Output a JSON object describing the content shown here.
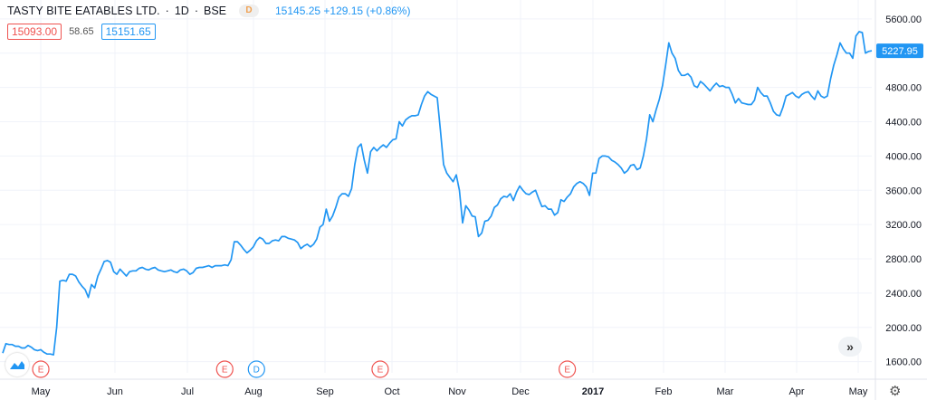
{
  "header": {
    "title": "TASTY BITE EATABLES LTD.",
    "interval": "1D",
    "exchange": "BSE",
    "badge": "D",
    "quote": "15145.25 +129.15 (+0.86%)"
  },
  "row2": {
    "red_value": "15093.00",
    "mid_value": "58.65",
    "blue_value": "15151.65"
  },
  "colors": {
    "line": "#2196f3",
    "accent": "#2196f3",
    "event": "#ef5350",
    "grid": "#f0f3fa"
  },
  "icons": {
    "logo": "tradingview-logo-icon",
    "scroll": "chevron-double-right-icon",
    "settings": "gear-icon"
  },
  "scroll_label": "»",
  "chart_data": {
    "type": "line",
    "xlabels": [
      "May",
      "Jun",
      "Jul",
      "Aug",
      "Sep",
      "Oct",
      "Nov",
      "Dec",
      "2017",
      "Feb",
      "Mar",
      "Apr",
      "May"
    ],
    "yticks": [
      1600,
      2000,
      2400,
      2800,
      3200,
      3600,
      4000,
      4400,
      4800,
      5200,
      5600
    ],
    "ytick_labels": [
      "1600.00",
      "2000.00",
      "2400.00",
      "2800.00",
      "3200.00",
      "3600.00",
      "4000.00",
      "4400.00",
      "4800.00",
      "5200.00",
      "5600.00"
    ],
    "ylim": [
      1470,
      5820
    ],
    "last_value_label": "5227.95",
    "last_value": 5228,
    "grid": true,
    "events": [
      {
        "label": "E",
        "type": "earnings",
        "date_index": 12
      },
      {
        "label": "E",
        "type": "earnings",
        "date_index": 70
      },
      {
        "label": "D",
        "type": "dividend",
        "date_index": 80
      },
      {
        "label": "E",
        "type": "earnings",
        "date_index": 119
      },
      {
        "label": "E",
        "type": "earnings",
        "date_index": 178
      }
    ],
    "series": [
      {
        "values": [
          1700,
          1810,
          1800,
          1800,
          1780,
          1780,
          1760,
          1760,
          1790,
          1770,
          1740,
          1730,
          1740,
          1710,
          1690,
          1690,
          1680,
          2000,
          2540,
          2550,
          2540,
          2620,
          2620,
          2600,
          2530,
          2480,
          2440,
          2350,
          2500,
          2460,
          2600,
          2680,
          2770,
          2780,
          2760,
          2650,
          2620,
          2680,
          2640,
          2600,
          2650,
          2660,
          2660,
          2690,
          2700,
          2680,
          2670,
          2690,
          2700,
          2670,
          2660,
          2650,
          2660,
          2670,
          2650,
          2640,
          2670,
          2680,
          2660,
          2620,
          2640,
          2690,
          2700,
          2700,
          2710,
          2720,
          2700,
          2720,
          2720,
          2720,
          2730,
          2720,
          2790,
          3000,
          3000,
          2960,
          2910,
          2870,
          2900,
          2940,
          3010,
          3050,
          3030,
          2980,
          2980,
          3010,
          3020,
          3010,
          3060,
          3060,
          3040,
          3030,
          3020,
          2990,
          2920,
          2950,
          2970,
          2940,
          2970,
          3030,
          3170,
          3200,
          3380,
          3240,
          3300,
          3400,
          3520,
          3560,
          3560,
          3530,
          3620,
          3900,
          4100,
          4140,
          3950,
          3800,
          4050,
          4100,
          4060,
          4100,
          4130,
          4100,
          4150,
          4190,
          4200,
          4400,
          4350,
          4420,
          4450,
          4470,
          4470,
          4480,
          4600,
          4700,
          4750,
          4720,
          4700,
          4680,
          4300,
          3900,
          3800,
          3750,
          3700,
          3780,
          3600,
          3220,
          3420,
          3370,
          3300,
          3290,
          3060,
          3100,
          3240,
          3250,
          3300,
          3400,
          3430,
          3500,
          3530,
          3520,
          3560,
          3480,
          3580,
          3650,
          3600,
          3560,
          3550,
          3580,
          3600,
          3500,
          3410,
          3420,
          3380,
          3380,
          3310,
          3340,
          3490,
          3470,
          3520,
          3560,
          3640,
          3680,
          3700,
          3680,
          3640,
          3540,
          3800,
          3800,
          3970,
          4000,
          4000,
          3990,
          3950,
          3930,
          3900,
          3860,
          3800,
          3830,
          3890,
          3900,
          3840,
          3860,
          4000,
          4200,
          4480,
          4400,
          4540,
          4660,
          4820,
          5060,
          5320,
          5200,
          5140,
          5000,
          4940,
          4940,
          4960,
          4920,
          4820,
          4800,
          4870,
          4840,
          4800,
          4760,
          4810,
          4850,
          4810,
          4820,
          4800,
          4800,
          4720,
          4620,
          4670,
          4620,
          4610,
          4600,
          4600,
          4650,
          4800,
          4740,
          4700,
          4700,
          4620,
          4520,
          4480,
          4470,
          4570,
          4700,
          4720,
          4740,
          4700,
          4680,
          4720,
          4740,
          4750,
          4700,
          4660,
          4760,
          4700,
          4680,
          4700,
          4900,
          5060,
          5180,
          5320,
          5250,
          5200,
          5200,
          5140,
          5400,
          5450,
          5440,
          5200,
          5220,
          5228
        ]
      }
    ]
  }
}
